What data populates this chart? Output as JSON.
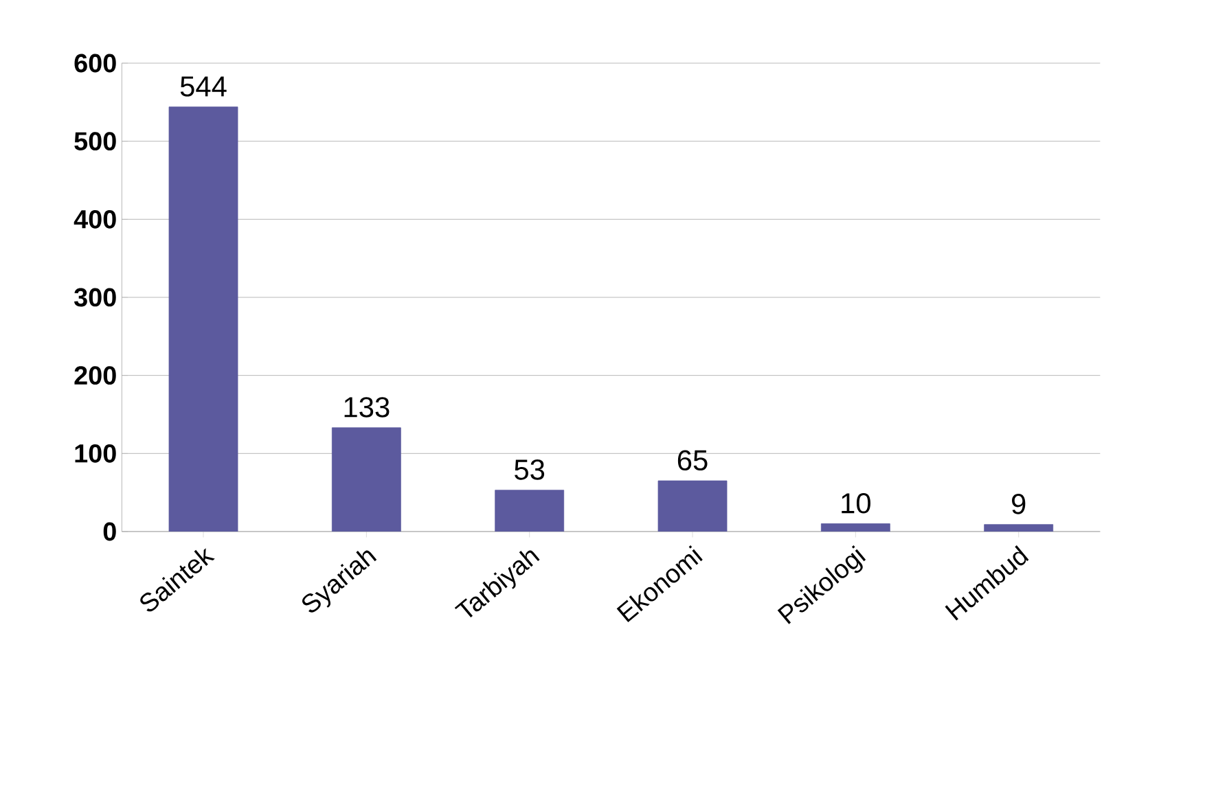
{
  "chart_data": {
    "type": "bar",
    "categories": [
      "Saintek",
      "Syariah",
      "Tarbiyah",
      "Ekonomi",
      "Psikologi",
      "Humbud"
    ],
    "values": [
      544,
      133,
      53,
      65,
      10,
      9
    ],
    "color": "#5c5a9e",
    "ylim": [
      0,
      600
    ],
    "yticks": [
      0,
      100,
      200,
      300,
      400,
      500,
      600
    ],
    "grid": "y",
    "data_labels": true
  }
}
